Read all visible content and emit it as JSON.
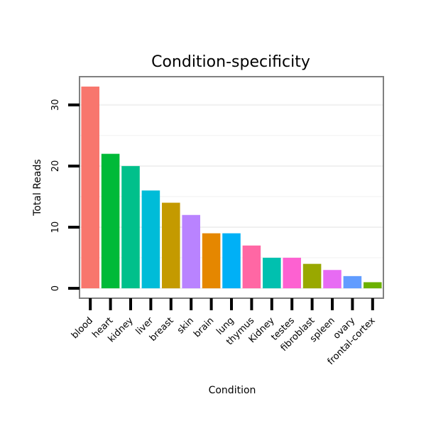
{
  "chart_data": {
    "type": "bar",
    "title": "Condition-specificity",
    "xlabel": "Condition",
    "ylabel": "Total Reads",
    "ylim": [
      -1.5,
      34.5
    ],
    "yticks": [
      0,
      10,
      20,
      30
    ],
    "grid": true,
    "categories": [
      "blood",
      "heart",
      "kidney",
      "liver",
      "breast",
      "skin",
      "brain",
      "lung",
      "thymus",
      "Kidney",
      "testes",
      "fibroblast",
      "spleen",
      "ovary",
      "frontal-cortex"
    ],
    "values": [
      33,
      22,
      20,
      16,
      14,
      12,
      9,
      9,
      7,
      5,
      5,
      4,
      3,
      2,
      1
    ],
    "colors": [
      "#F8766D",
      "#00BA38",
      "#00C08B",
      "#00BCD8",
      "#C49A00",
      "#B983FF",
      "#E58700",
      "#00B0F6",
      "#FF67A4",
      "#00C0AF",
      "#FD61D1",
      "#99A800",
      "#E76BF3",
      "#619CFF",
      "#6BB100"
    ]
  }
}
